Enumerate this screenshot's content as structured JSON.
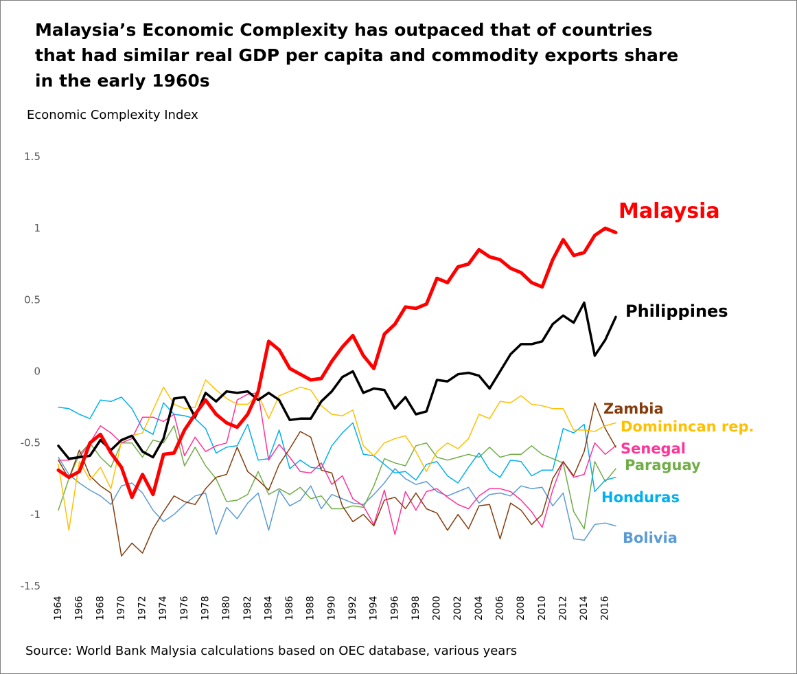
{
  "title": "Malaysia’s Economic Complexity has outpaced that of countries that had similar real GDP per capita and commodity exports share in the early 1960s",
  "source": "Source: World Bank Malysia calculations based on OEC database, various years",
  "chart_data": {
    "type": "line",
    "title": "Malaysia’s Economic Complexity has outpaced that of countries that had similar real GDP per capita and commodity exports share in the early 1960s",
    "ylabel": "Economic Complexity Index",
    "xlabel": "",
    "ylim": [
      -1.5,
      1.5
    ],
    "y_ticks": [
      "1.5",
      "1",
      "0.5",
      "0",
      "-0.5",
      "-1",
      "-1.5"
    ],
    "x_ticks": [
      "1964",
      "1966",
      "1968",
      "1970",
      "1972",
      "1974",
      "1976",
      "1978",
      "1980",
      "1982",
      "1984",
      "1986",
      "1988",
      "1990",
      "1992",
      "1994",
      "1996",
      "1998",
      "2000",
      "2002",
      "2004",
      "2006",
      "2008",
      "2010",
      "2012",
      "2014",
      "2016"
    ],
    "x": [
      1964,
      1965,
      1966,
      1967,
      1968,
      1969,
      1970,
      1971,
      1972,
      1973,
      1974,
      1975,
      1976,
      1977,
      1978,
      1979,
      1980,
      1981,
      1982,
      1983,
      1984,
      1985,
      1986,
      1987,
      1988,
      1989,
      1990,
      1991,
      1992,
      1993,
      1994,
      1995,
      1996,
      1997,
      1998,
      1999,
      2000,
      2001,
      2002,
      2003,
      2004,
      2005,
      2006,
      2007,
      2008,
      2009,
      2010,
      2011,
      2012,
      2013,
      2014,
      2015,
      2016,
      2017
    ],
    "legend": "direct labels at line ends",
    "grid": false,
    "series": [
      {
        "name": "Bolivia",
        "color": "#5b9bd5",
        "width": 1.5,
        "values": [
          -0.6,
          -0.72,
          -0.78,
          -0.83,
          -0.87,
          -0.93,
          -0.8,
          -0.78,
          -0.85,
          -0.97,
          -1.05,
          -1.0,
          -0.93,
          -0.87,
          -0.85,
          -1.14,
          -0.95,
          -1.03,
          -0.92,
          -0.85,
          -1.11,
          -0.83,
          -0.94,
          -0.9,
          -0.8,
          -0.96,
          -0.86,
          -0.89,
          -0.92,
          -0.93,
          -0.86,
          -0.78,
          -0.68,
          -0.75,
          -0.79,
          -0.77,
          -0.84,
          -0.87,
          -0.84,
          -0.81,
          -0.92,
          -0.86,
          -0.85,
          -0.87,
          -0.8,
          -0.82,
          -0.81,
          -0.94,
          -0.85,
          -1.17,
          -1.18,
          -1.07,
          -1.06,
          -1.08
        ]
      },
      {
        "name": "Paraguay",
        "color": "#70ad47",
        "width": 1.5,
        "values": [
          -0.97,
          -0.75,
          -0.58,
          -0.5,
          -0.6,
          -0.67,
          -0.5,
          -0.5,
          -0.6,
          -0.48,
          -0.5,
          -0.38,
          -0.66,
          -0.53,
          -0.66,
          -0.75,
          -0.91,
          -0.9,
          -0.86,
          -0.7,
          -0.86,
          -0.82,
          -0.86,
          -0.81,
          -0.89,
          -0.87,
          -0.96,
          -0.96,
          -0.94,
          -0.95,
          -0.8,
          -0.61,
          -0.64,
          -0.66,
          -0.52,
          -0.5,
          -0.6,
          -0.62,
          -0.6,
          -0.58,
          -0.6,
          -0.53,
          -0.6,
          -0.58,
          -0.58,
          -0.52,
          -0.58,
          -0.61,
          -0.64,
          -0.98,
          -1.1,
          -0.63,
          -0.77,
          -0.68
        ]
      },
      {
        "name": "Honduras",
        "color": "#00b0f0",
        "width": 1.5,
        "values": [
          -0.25,
          -0.26,
          -0.3,
          -0.33,
          -0.2,
          -0.21,
          -0.18,
          -0.26,
          -0.4,
          -0.44,
          -0.22,
          -0.3,
          -0.31,
          -0.33,
          -0.4,
          -0.57,
          -0.53,
          -0.52,
          -0.37,
          -0.62,
          -0.61,
          -0.41,
          -0.68,
          -0.62,
          -0.67,
          -0.68,
          -0.52,
          -0.43,
          -0.36,
          -0.58,
          -0.59,
          -0.65,
          -0.71,
          -0.7,
          -0.76,
          -0.65,
          -0.63,
          -0.73,
          -0.78,
          -0.67,
          -0.57,
          -0.69,
          -0.74,
          -0.62,
          -0.63,
          -0.73,
          -0.69,
          -0.69,
          -0.4,
          -0.43,
          -0.37,
          -0.84,
          -0.76,
          -0.74
        ]
      },
      {
        "name": "Senegal",
        "color": "#ff3399",
        "width": 1.5,
        "values": [
          -0.62,
          -0.62,
          -0.6,
          -0.5,
          -0.38,
          -0.43,
          -0.5,
          -0.47,
          -0.32,
          -0.32,
          -0.35,
          -0.3,
          -0.59,
          -0.46,
          -0.56,
          -0.52,
          -0.5,
          -0.2,
          -0.16,
          -0.15,
          -0.62,
          -0.51,
          -0.6,
          -0.7,
          -0.71,
          -0.64,
          -0.79,
          -0.73,
          -0.89,
          -0.94,
          -1.07,
          -0.83,
          -1.14,
          -0.84,
          -0.97,
          -0.84,
          -0.82,
          -0.88,
          -0.93,
          -0.96,
          -0.87,
          -0.82,
          -0.82,
          -0.84,
          -0.9,
          -0.98,
          -1.09,
          -0.83,
          -0.63,
          -0.74,
          -0.72,
          -0.5,
          -0.58,
          -0.52
        ]
      },
      {
        "name": "Zambia",
        "color": "#843c0c",
        "width": 1.5,
        "values": [
          -0.62,
          -0.75,
          -0.55,
          -0.73,
          -0.8,
          -0.85,
          -1.29,
          -1.2,
          -1.27,
          -1.1,
          -0.98,
          -0.87,
          -0.91,
          -0.93,
          -0.82,
          -0.74,
          -0.72,
          -0.53,
          -0.7,
          -0.76,
          -0.83,
          -0.65,
          -0.54,
          -0.42,
          -0.46,
          -0.69,
          -0.71,
          -0.94,
          -1.05,
          -1.0,
          -1.08,
          -0.9,
          -0.88,
          -0.96,
          -0.85,
          -0.96,
          -0.99,
          -1.11,
          -1.0,
          -1.1,
          -0.94,
          -0.93,
          -1.17,
          -0.92,
          -0.97,
          -1.07,
          -1.0,
          -0.75,
          -0.63,
          -0.73,
          -0.56,
          -0.22,
          -0.4,
          -0.53
        ]
      },
      {
        "name": "Dominincan rep.",
        "color": "#ffc000",
        "width": 1.5,
        "values": [
          -0.65,
          -1.11,
          -0.63,
          -0.76,
          -0.67,
          -0.82,
          -0.49,
          -0.45,
          -0.43,
          -0.27,
          -0.11,
          -0.23,
          -0.26,
          -0.25,
          -0.06,
          -0.13,
          -0.19,
          -0.23,
          -0.23,
          -0.16,
          -0.33,
          -0.17,
          -0.14,
          -0.11,
          -0.13,
          -0.24,
          -0.3,
          -0.31,
          -0.27,
          -0.52,
          -0.59,
          -0.5,
          -0.47,
          -0.45,
          -0.56,
          -0.7,
          -0.56,
          -0.5,
          -0.54,
          -0.47,
          -0.3,
          -0.33,
          -0.21,
          -0.22,
          -0.17,
          -0.23,
          -0.24,
          -0.26,
          -0.26,
          -0.41,
          -0.41,
          -0.42,
          -0.38,
          -0.36
        ]
      },
      {
        "name": "Philippines",
        "color": "#000000",
        "width": 3.5,
        "values": [
          -0.52,
          -0.61,
          -0.6,
          -0.59,
          -0.48,
          -0.55,
          -0.48,
          -0.45,
          -0.56,
          -0.6,
          -0.47,
          -0.19,
          -0.18,
          -0.32,
          -0.15,
          -0.21,
          -0.14,
          -0.15,
          -0.14,
          -0.2,
          -0.15,
          -0.2,
          -0.34,
          -0.33,
          -0.33,
          -0.21,
          -0.14,
          -0.04,
          0.0,
          -0.15,
          -0.12,
          -0.13,
          -0.26,
          -0.18,
          -0.3,
          -0.28,
          -0.06,
          -0.07,
          -0.02,
          -0.01,
          -0.03,
          -0.12,
          0.0,
          0.12,
          0.19,
          0.19,
          0.21,
          0.33,
          0.39,
          0.34,
          0.48,
          0.11,
          0.22,
          0.38
        ]
      },
      {
        "name": "Malaysia",
        "color": "#ff0000",
        "width": 5,
        "values": [
          -0.69,
          -0.74,
          -0.7,
          -0.5,
          -0.44,
          -0.57,
          -0.67,
          -0.88,
          -0.72,
          -0.86,
          -0.58,
          -0.57,
          -0.41,
          -0.3,
          -0.2,
          -0.3,
          -0.36,
          -0.39,
          -0.3,
          -0.14,
          0.21,
          0.15,
          0.02,
          -0.02,
          -0.06,
          -0.05,
          0.07,
          0.17,
          0.25,
          0.11,
          0.02,
          0.26,
          0.33,
          0.45,
          0.44,
          0.47,
          0.65,
          0.62,
          0.73,
          0.75,
          0.85,
          0.8,
          0.78,
          0.72,
          0.69,
          0.62,
          0.59,
          0.78,
          0.92,
          0.81,
          0.83,
          0.95,
          1.0,
          0.97
        ]
      }
    ]
  }
}
